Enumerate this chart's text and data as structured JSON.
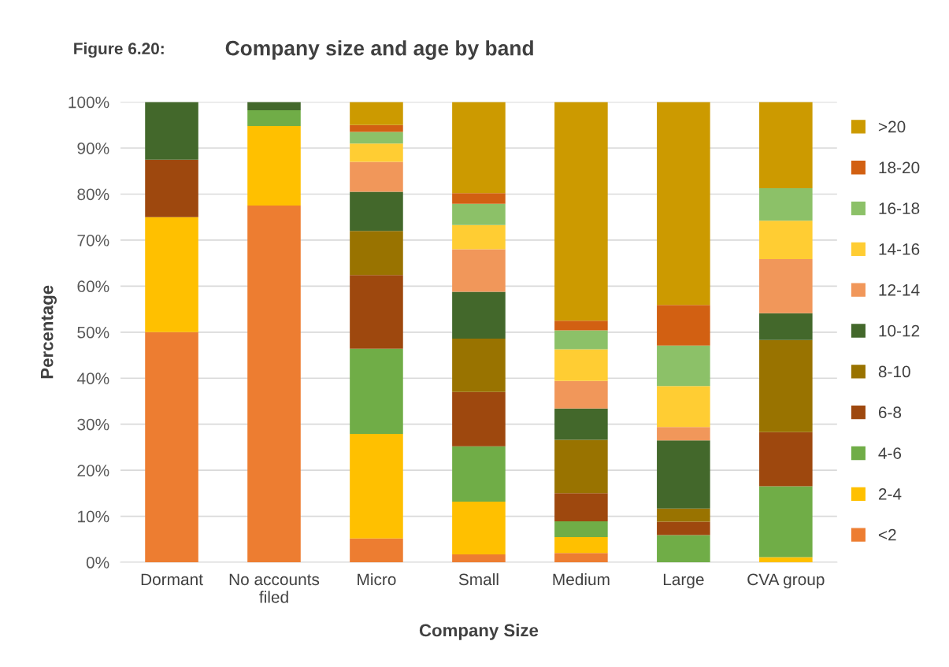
{
  "chart_data": {
    "type": "bar",
    "stacked": true,
    "title": "Company size and age by band",
    "annotations": [
      "Figure 6.20:"
    ],
    "xlabel": "Company Size",
    "ylabel": "Percentage",
    "categories": [
      "Dormant",
      "No accounts\nfiled",
      "Micro",
      "Small",
      "Medium",
      "Large",
      "CVA group"
    ],
    "ylim": [
      0,
      100
    ],
    "yticks": [
      {
        "value": 0,
        "label": "0%"
      },
      {
        "value": 10,
        "label": "10%"
      },
      {
        "value": 20,
        "label": "20%"
      },
      {
        "value": 30,
        "label": "30%"
      },
      {
        "value": 40,
        "label": "40%"
      },
      {
        "value": 50,
        "label": "50%"
      },
      {
        "value": 60,
        "label": "60%"
      },
      {
        "value": 70,
        "label": "70%"
      },
      {
        "value": 80,
        "label": "80%"
      },
      {
        "value": 90,
        "label": "90%"
      },
      {
        "value": 100,
        "label": "100%"
      }
    ],
    "grid": "y",
    "legend": "right",
    "series": [
      {
        "name": "<2",
        "color": "#ed7d31",
        "values": [
          50,
          77.5,
          5.2,
          1.7,
          2.0,
          0,
          0
        ]
      },
      {
        "name": "2-4",
        "color": "#ffc000",
        "values": [
          25,
          17.3,
          22.7,
          11.5,
          3.5,
          0,
          1.1
        ]
      },
      {
        "name": "4-6",
        "color": "#70ad47",
        "values": [
          0,
          3.4,
          18.5,
          12.0,
          3.4,
          5.9,
          15.4
        ]
      },
      {
        "name": "6-8",
        "color": "#9e480e",
        "values": [
          12.5,
          0,
          16.0,
          11.8,
          6.1,
          2.9,
          11.8
        ]
      },
      {
        "name": "8-10",
        "color": "#997300",
        "values": [
          0,
          0,
          9.6,
          11.6,
          11.6,
          2.9,
          20.0
        ]
      },
      {
        "name": "10-12",
        "color": "#43682b",
        "values": [
          12.5,
          1.8,
          8.5,
          10.2,
          6.8,
          14.8,
          5.8
        ]
      },
      {
        "name": "12-14",
        "color": "#f1975a",
        "values": [
          0,
          0,
          6.5,
          9.2,
          6.0,
          2.9,
          11.8
        ]
      },
      {
        "name": "14-16",
        "color": "#ffcd33",
        "values": [
          0,
          0,
          4.0,
          5.3,
          6.9,
          8.9,
          8.3
        ]
      },
      {
        "name": "16-18",
        "color": "#8cc168",
        "values": [
          0,
          0,
          2.5,
          4.6,
          4.1,
          8.8,
          7.1
        ]
      },
      {
        "name": "18-20",
        "color": "#d26012",
        "values": [
          0,
          0,
          1.5,
          2.3,
          2.1,
          8.8,
          0
        ]
      },
      {
        "name": ">20",
        "color": "#cc9a00",
        "values": [
          0,
          0,
          5.0,
          19.8,
          47.5,
          44.1,
          18.7
        ]
      }
    ]
  }
}
